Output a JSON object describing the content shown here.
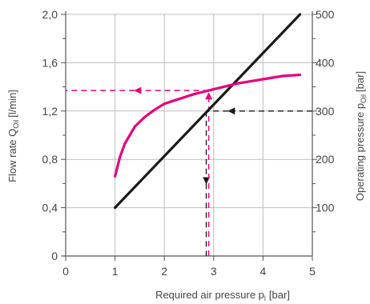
{
  "chart_data": {
    "type": "line",
    "title": "",
    "grid": true,
    "xlabel": "Required air pressure p",
    "xlabel_sub": "l",
    "xlabel_unit": "[bar]",
    "ylabel": "Flow rate Q",
    "ylabel_sub": "Oil",
    "ylabel_unit": "[l/min]",
    "y2label": "Operating pressure p",
    "y2label_sub": "Oil",
    "y2label_unit": "[bar]",
    "xlim": [
      0,
      5
    ],
    "ylim": [
      0,
      2.0
    ],
    "y2lim": [
      0,
      500
    ],
    "x_ticks": [
      {
        "value": 0,
        "label": "0"
      },
      {
        "value": 1,
        "label": "1"
      },
      {
        "value": 2,
        "label": "2"
      },
      {
        "value": 3,
        "label": "3"
      },
      {
        "value": 4,
        "label": "4"
      },
      {
        "value": 5,
        "label": "5"
      }
    ],
    "y_ticks": [
      {
        "value": 0,
        "label": "0"
      },
      {
        "value": 0.4,
        "label": "0,4"
      },
      {
        "value": 0.8,
        "label": "0,8"
      },
      {
        "value": 1.2,
        "label": "1,2"
      },
      {
        "value": 1.6,
        "label": "1,6"
      },
      {
        "value": 2.0,
        "label": "2,0"
      }
    ],
    "y2_ticks": [
      {
        "value": 100,
        "label": "100"
      },
      {
        "value": 200,
        "label": "200"
      },
      {
        "value": 300,
        "label": "300"
      },
      {
        "value": 400,
        "label": "400"
      },
      {
        "value": 500,
        "label": "500"
      }
    ],
    "series": [
      {
        "axis": "y2",
        "color": "#1a1a1a",
        "x": [
          1.0,
          4.75
        ],
        "values": [
          100,
          500
        ]
      },
      {
        "axis": "y",
        "color": "#e6007e",
        "x": [
          1.0,
          1.1,
          1.2,
          1.4,
          1.6,
          1.8,
          2.0,
          2.3,
          2.6,
          2.9,
          3.2,
          3.5,
          3.8,
          4.1,
          4.4,
          4.75
        ],
        "values": [
          0.66,
          0.82,
          0.93,
          1.07,
          1.15,
          1.21,
          1.26,
          1.3,
          1.34,
          1.37,
          1.4,
          1.43,
          1.45,
          1.47,
          1.49,
          1.5
        ]
      }
    ],
    "annotations": [
      {
        "type": "arrow",
        "color": "#1a1a1a",
        "axis": "y2",
        "from": [
          5.0,
          300
        ],
        "to": [
          3.3,
          300
        ],
        "dashed": true
      },
      {
        "type": "line",
        "color": "#1a1a1a",
        "axis": "y2",
        "from": [
          3.3,
          300
        ],
        "to": [
          2.85,
          300
        ],
        "dashed": true
      },
      {
        "type": "arrow",
        "color": "#1a1a1a",
        "axis": "y2",
        "from": [
          2.85,
          300
        ],
        "to": [
          2.85,
          150
        ],
        "dashed": true
      },
      {
        "type": "line",
        "color": "#1a1a1a",
        "axis": "y2",
        "from": [
          2.85,
          150
        ],
        "to": [
          2.85,
          0
        ],
        "dashed": true
      },
      {
        "type": "arrow",
        "color": "#e6007e",
        "axis": "y",
        "from": [
          2.9,
          0
        ],
        "to": [
          2.9,
          1.35
        ],
        "dashed": true
      },
      {
        "type": "arrow",
        "color": "#e6007e",
        "axis": "y",
        "from": [
          2.9,
          1.37
        ],
        "to": [
          1.4,
          1.37
        ],
        "dashed": true
      },
      {
        "type": "line",
        "color": "#e6007e",
        "axis": "y",
        "from": [
          1.4,
          1.37
        ],
        "to": [
          0,
          1.37
        ],
        "dashed": true
      }
    ]
  }
}
